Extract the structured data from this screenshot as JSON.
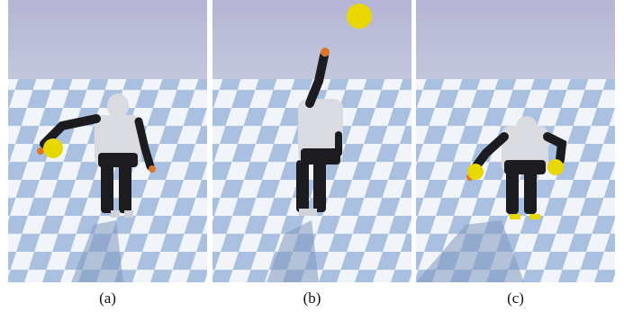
{
  "panels": [
    {
      "caption": "(a)"
    },
    {
      "caption": "(b)"
    },
    {
      "caption": "(c)"
    }
  ],
  "colors": {
    "sky": "#b8b8d6",
    "floor_light": "#f1f4f8",
    "floor_blue": "#a9c0e0",
    "robot_white": "#d9dbe0",
    "robot_black": "#1c1c20",
    "ball_yellow": "#e8d800",
    "gripper_orange": "#d9772a"
  },
  "scene_objects": [
    "humanoid-robot",
    "yellow-ball",
    "checkered-floor",
    "shadow"
  ]
}
